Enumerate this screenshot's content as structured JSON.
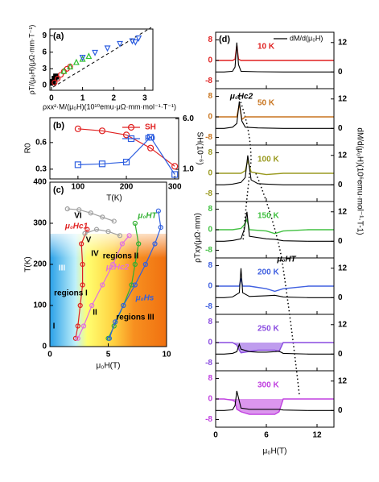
{
  "chart_data": [
    {
      "type": "scatter",
      "panel": "(a)",
      "xlabel": "ρxx²·M/(μ₀H)(10¹⁰emu·μΩ·mm·mol⁻¹·T⁻¹)",
      "ylabel": "ρT/(μ₀H)(μΩ·mm·T⁻¹)",
      "xlim": [
        -0.05,
        3.26
      ],
      "ylim": [
        -0.9,
        10.2
      ],
      "xticks": [
        0,
        1,
        2,
        3
      ],
      "yticks": [
        0,
        3,
        6,
        9
      ],
      "series": [
        {
          "color": "#000000",
          "marker": "square",
          "x": [
            0.05,
            0.1,
            0.15
          ],
          "values": [
            0.6,
            1.2,
            1.6
          ]
        },
        {
          "color": "#e02020",
          "marker": "circle",
          "x": [
            0.1,
            0.2,
            0.3,
            0.4,
            0.5,
            0.6
          ],
          "values": [
            0.5,
            1.2,
            1.9,
            2.5,
            3.0,
            3.4
          ]
        },
        {
          "color": "#30c030",
          "marker": "triangle",
          "x": [
            0.4,
            0.6,
            0.8,
            1.0,
            1.2
          ],
          "values": [
            2.6,
            3.4,
            4.2,
            4.8,
            5.3
          ]
        },
        {
          "color": "#3060e0",
          "marker": "triangle-down",
          "x": [
            1.0,
            1.4,
            1.8,
            2.2,
            2.6,
            2.8,
            2.7
          ],
          "values": [
            5.0,
            5.9,
            6.7,
            7.5,
            8.0,
            8.5,
            7.8
          ]
        }
      ]
    },
    {
      "type": "line",
      "panel": "(b)",
      "xlabel": "T(K)",
      "ylabel": "R0",
      "y2label": "SH(10⁻⁶)",
      "x": [
        100,
        150,
        200,
        250,
        300
      ],
      "xlim": [
        42,
        308
      ],
      "xticks": [
        100,
        200,
        300
      ],
      "ylim": [
        0.19,
        0.88
      ],
      "yticks": [
        0.3,
        0.6
      ],
      "y2lim": [
        0.05,
        6.1
      ],
      "y2ticks": [
        {
          "value": 1,
          "label": "1.0"
        },
        {
          "value": 6,
          "label": "6.0"
        }
      ],
      "legend": "upper right",
      "series": [
        {
          "name": "SH",
          "color": "#e02020",
          "marker": "circle",
          "axis": "y2",
          "values": [
            5.0,
            4.8,
            4.4,
            3.1,
            1.3
          ]
        },
        {
          "name": "R0",
          "color": "#3060e0",
          "marker": "square",
          "values": [
            0.35,
            0.36,
            0.38,
            0.66,
            0.24
          ]
        }
      ]
    },
    {
      "type": "line",
      "panel": "(c)",
      "xlabel": "μ₀H(T)",
      "ylabel": "T(K)",
      "xlim": [
        0,
        10
      ],
      "ylim": [
        0,
        400
      ],
      "xticks": [
        0,
        5,
        10
      ],
      "yticks": [
        0,
        100,
        200,
        300,
        400
      ],
      "series": [
        {
          "name": "μ₀Hc1",
          "color": "#e02020",
          "x": [
            2.2,
            2.4,
            2.6,
            2.8,
            2.8,
            2.7,
            3.2
          ],
          "values": [
            20,
            50,
            100,
            150,
            200,
            250,
            285
          ]
        },
        {
          "name": "μ₀Hc2",
          "color": "#e070e0",
          "x": [
            2.4,
            2.9,
            3.6,
            4.5,
            5.4,
            6.2,
            6.8
          ],
          "values": [
            20,
            50,
            100,
            150,
            200,
            250,
            270
          ]
        },
        {
          "name": "μ₀HT",
          "color": "#30b030",
          "x": [
            5.0,
            5.5,
            6.3,
            7.0,
            7.3,
            7.6,
            7.3
          ],
          "values": [
            20,
            50,
            100,
            150,
            200,
            250,
            300
          ]
        },
        {
          "name": "μ₀Hs",
          "color": "#3060e0",
          "x": [
            5.1,
            5.6,
            6.3,
            7.3,
            8.2,
            9.0,
            9.5,
            9.3
          ],
          "values": [
            20,
            60,
            100,
            150,
            200,
            250,
            290,
            330
          ]
        },
        {
          "color": "#a0a0a0",
          "x": [
            1.5,
            2.5,
            3.5,
            4.5,
            5.5
          ],
          "values": [
            335,
            333,
            325,
            315,
            305
          ]
        },
        {
          "color": "#a0a0a0",
          "x": [
            3.0,
            4.0,
            5.0,
            6.0
          ],
          "values": [
            275,
            285,
            280,
            270
          ]
        }
      ],
      "annotations": [
        "VI",
        "V",
        "IV",
        "regions II",
        "III",
        "regions I",
        "II",
        "regions III",
        "I"
      ]
    },
    {
      "type": "line",
      "panel": "(d)",
      "xlabel": "μ₀H(T)",
      "ylabel": "ρTxy(μΩ·mm)",
      "y2label": "dM/d(μ₀H)(10⁶emu·mol⁻¹·T-1)",
      "legend_name": "dM/d(μ₀H)",
      "xlim": [
        0,
        14
      ],
      "xticks": [
        0,
        6,
        12
      ],
      "ylim": [
        -11,
        11
      ],
      "yticks": [
        8,
        0,
        -8
      ],
      "y2lim": [
        -6.8,
        16.2
      ],
      "y2ticks": [
        12,
        0
      ],
      "annotations": [
        "μ₀Hc2",
        "μ₀HT"
      ],
      "panels": [
        {
          "label": "10 K",
          "color": "#e02020",
          "x": [
            0,
            1,
            2,
            2.3,
            2.5,
            2.7,
            3,
            5,
            8,
            11,
            14
          ],
          "values": [
            0,
            0,
            0,
            0.5,
            6,
            0.5,
            0,
            0,
            0,
            0,
            0
          ],
          "dm": [
            0,
            0,
            0.3,
            2,
            12,
            3,
            0.3,
            0.1,
            0,
            0,
            0
          ]
        },
        {
          "label": "50 K",
          "color": "#c8741e",
          "x": [
            0,
            1,
            2,
            2.5,
            2.8,
            3.1,
            3.5,
            5,
            8,
            11,
            14
          ],
          "values": [
            0,
            0,
            0,
            0,
            5,
            -1,
            0,
            0,
            0,
            0,
            0
          ],
          "dm": [
            0,
            0,
            0.5,
            2,
            11,
            3,
            0.5,
            0.2,
            0,
            0,
            0
          ]
        },
        {
          "label": "100 K",
          "color": "#9a9a20",
          "x": [
            0,
            1,
            2,
            3,
            3.5,
            3.8,
            4.2,
            5,
            6,
            8,
            11,
            14
          ],
          "values": [
            0,
            0,
            0,
            0,
            1,
            5,
            0.5,
            0,
            -0.5,
            0,
            0,
            0
          ],
          "dm": [
            0,
            0,
            0.3,
            1,
            3,
            12,
            2,
            0.5,
            0.3,
            0,
            0,
            0
          ]
        },
        {
          "label": "150 K",
          "color": "#40c040",
          "x": [
            0,
            1,
            2,
            3,
            3.4,
            3.7,
            4,
            6,
            7,
            8,
            11,
            14
          ],
          "values": [
            0,
            0,
            0,
            0.5,
            2,
            4,
            0,
            -0.5,
            -1.5,
            -0.5,
            0,
            0
          ],
          "dm": [
            0,
            0,
            0.3,
            1,
            5,
            12,
            2,
            1,
            0.8,
            0.2,
            0,
            0
          ]
        },
        {
          "label": "200 K",
          "color": "#4060e0",
          "x": [
            0,
            1,
            2,
            2.8,
            3,
            3.2,
            4,
            6,
            7,
            8,
            11,
            14
          ],
          "values": [
            0,
            0,
            0,
            0,
            3,
            0,
            0,
            -1,
            -2,
            -1,
            0,
            0
          ],
          "dm": [
            0,
            0,
            0.3,
            2,
            12,
            2,
            0.5,
            0.8,
            1,
            0.3,
            0,
            0
          ]
        },
        {
          "label": "250 K",
          "color": "#8a4ce0",
          "fill": true,
          "x": [
            0,
            1,
            2,
            2.5,
            2.8,
            3,
            4,
            5,
            6,
            7,
            7.5,
            8,
            11,
            14
          ],
          "values": [
            0,
            0,
            0,
            -1,
            -3,
            -4,
            -3.5,
            -3,
            -3,
            -3,
            -3.5,
            0,
            0,
            0
          ],
          "dm": [
            0,
            0,
            0.3,
            1,
            4,
            2,
            1,
            0.8,
            0.8,
            1,
            1.2,
            0.3,
            0,
            0
          ]
        },
        {
          "label": "300 K",
          "color": "#c040e0",
          "fill": true,
          "x": [
            0,
            1,
            2,
            2.3,
            2.5,
            3,
            4,
            5,
            6,
            7,
            7.5,
            8,
            11,
            14
          ],
          "values": [
            0,
            0,
            -0.5,
            -1,
            -4,
            -5,
            -6,
            -6,
            -6,
            -6,
            -5,
            0,
            0,
            0
          ],
          "dm": [
            0,
            0,
            0.3,
            2,
            8,
            1,
            0.5,
            0.5,
            0.5,
            0.5,
            0.5,
            0.2,
            0,
            0
          ]
        }
      ]
    }
  ]
}
